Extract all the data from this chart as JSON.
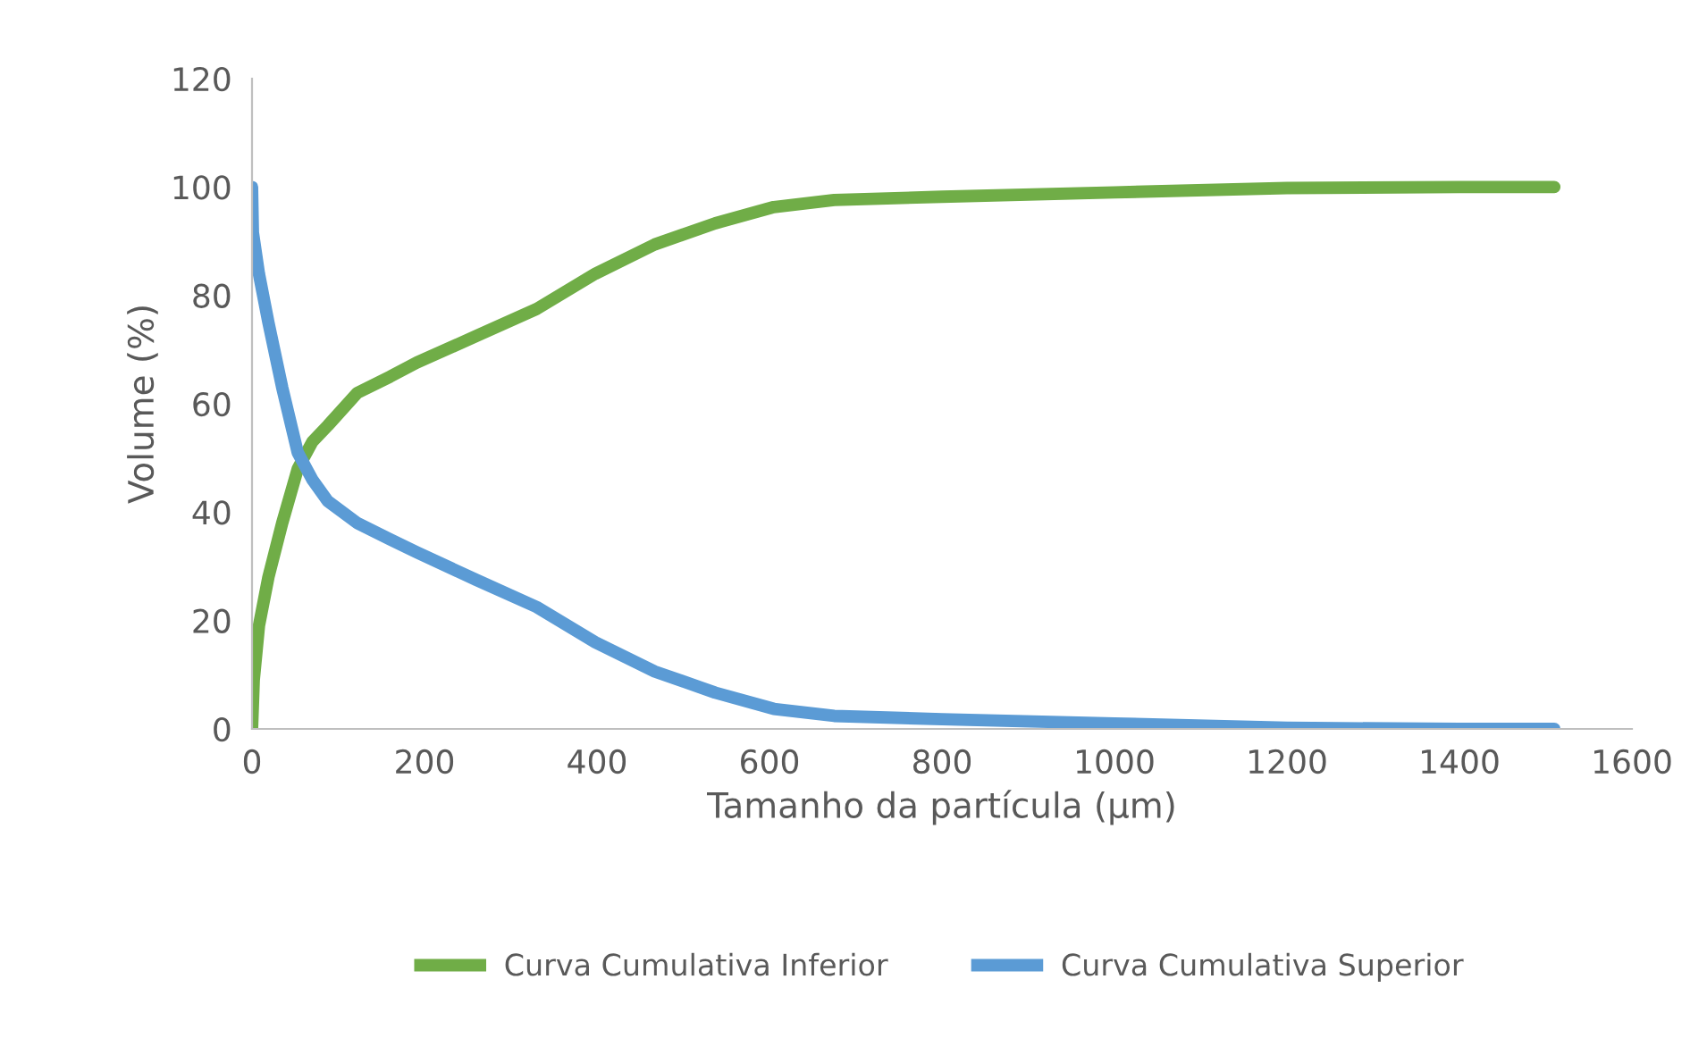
{
  "chart_data": {
    "type": "line",
    "xlabel": "Tamanho da partícula (μm)",
    "ylabel": "Volume (%)",
    "xlim": [
      0,
      1600
    ],
    "xticks": [
      0,
      200,
      400,
      600,
      800,
      1000,
      1200,
      1400,
      1600
    ],
    "ylim": [
      0,
      120
    ],
    "yticks": [
      0,
      20,
      40,
      60,
      80,
      100,
      120
    ],
    "grid": false,
    "legend": "bottom",
    "marker": "none",
    "line_style": "solid",
    "series": [
      {
        "name": "Curva Cumulativa Inferior",
        "color": "#70ad47",
        "x": [
          0,
          2,
          8,
          19,
          35,
          53,
          70,
          88,
          122,
          160,
          191,
          260,
          330,
          398,
          467,
          537,
          605,
          675,
          800,
          1000,
          1200,
          1400,
          1510
        ],
        "values": [
          0,
          9,
          19,
          28,
          38,
          48,
          53,
          56,
          62,
          65,
          67.6,
          72.5,
          77.5,
          84,
          89.4,
          93.3,
          96.3,
          97.6,
          98.2,
          99,
          99.8,
          100,
          100
        ]
      },
      {
        "name": "Curva Cumulativa Superior",
        "color": "#5b9bd5",
        "x": [
          0,
          1,
          8,
          19,
          35,
          53,
          70,
          88,
          122,
          160,
          191,
          260,
          330,
          398,
          467,
          537,
          605,
          675,
          800,
          1000,
          1200,
          1400,
          1510
        ],
        "values": [
          100,
          91.6,
          84,
          75,
          63,
          51,
          46,
          42,
          38,
          35,
          32.6,
          27.5,
          22.5,
          16,
          10.6,
          6.7,
          3.7,
          2.4,
          1.8,
          1,
          0.2,
          0,
          0
        ]
      }
    ]
  }
}
